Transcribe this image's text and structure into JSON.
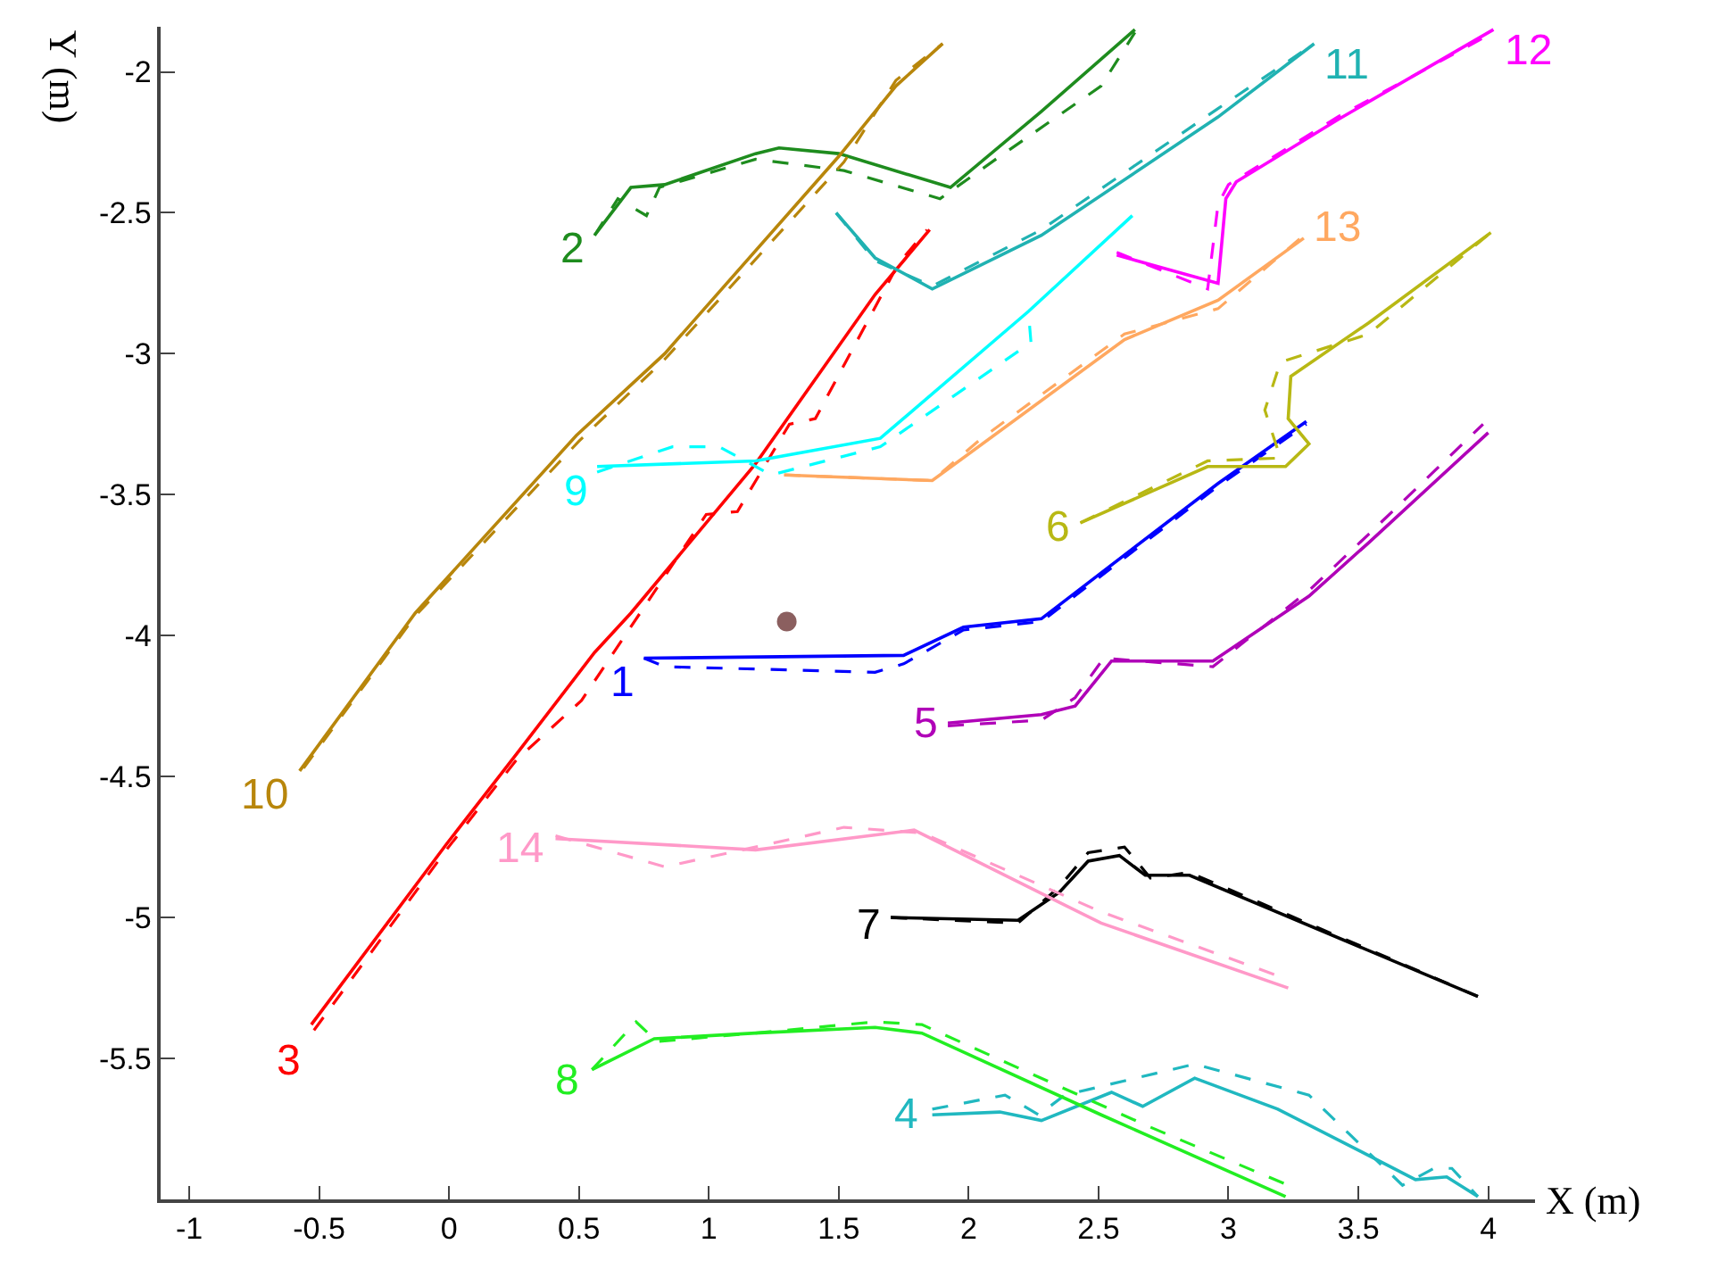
{
  "chart_data": {
    "type": "line",
    "xlabel": "X (m)",
    "ylabel": "Y (m)",
    "xlim": [
      -1.11,
      4.18
    ],
    "ylim": [
      -6.0,
      -1.84
    ],
    "xticks": [
      -1,
      -0.5,
      0,
      0.5,
      1,
      1.5,
      2,
      2.5,
      3,
      3.5,
      4
    ],
    "yticks": [
      -2,
      -2.5,
      -3,
      -3.5,
      -4,
      -4.5,
      -5,
      -5.5
    ],
    "grid": false,
    "legend": false,
    "marker": "none",
    "series": [
      {
        "name": "1",
        "color": "#0000ff",
        "line_style": "solid",
        "x": [
          0.75,
          1.75,
          1.98,
          2.28,
          2.96,
          3.3
        ],
        "values": [
          -4.08,
          -4.07,
          -3.97,
          -3.94,
          -3.46,
          -3.24
        ]
      },
      {
        "color": "#0000ff",
        "line_style": "dashed",
        "x": [
          0.75,
          0.83,
          1.64,
          1.75,
          1.98,
          2.28,
          2.96,
          3.3
        ],
        "values": [
          -4.08,
          -4.11,
          -4.13,
          -4.1,
          -3.98,
          -3.95,
          -3.47,
          -3.25
        ]
      },
      {
        "name": "2",
        "color": "#1e8c1e",
        "line_style": "solid",
        "x": [
          0.56,
          0.7,
          0.83,
          1.18,
          1.27,
          1.5,
          1.93,
          2.28,
          2.64
        ],
        "values": [
          -2.58,
          -2.41,
          -2.4,
          -2.29,
          -2.27,
          -2.29,
          -2.41,
          -2.14,
          -1.85
        ]
      },
      {
        "color": "#1e8c1e",
        "line_style": "dashed",
        "x": [
          0.56,
          0.65,
          0.76,
          0.81,
          1.18,
          1.52,
          1.89,
          2.12,
          2.51,
          2.64
        ],
        "values": [
          -2.58,
          -2.45,
          -2.51,
          -2.41,
          -2.31,
          -2.35,
          -2.45,
          -2.3,
          -2.05,
          -1.86
        ]
      },
      {
        "name": "3",
        "color": "#ff0000",
        "line_style": "solid",
        "x": [
          -0.53,
          -0.01,
          0.26,
          0.56,
          0.7,
          1.18,
          1.64,
          1.85
        ],
        "values": [
          -5.38,
          -4.74,
          -4.42,
          -4.06,
          -3.92,
          -3.39,
          -2.79,
          -2.56
        ]
      },
      {
        "color": "#ff0000",
        "line_style": "dashed",
        "x": [
          -0.52,
          -0.01,
          0.26,
          0.51,
          0.99,
          1.11,
          1.31,
          1.41,
          1.73,
          1.84
        ],
        "values": [
          -5.4,
          -4.76,
          -4.44,
          -4.23,
          -3.57,
          -3.56,
          -3.25,
          -3.23,
          -2.68,
          -2.56
        ]
      },
      {
        "name": "4",
        "color": "#20b8c0",
        "line_style": "solid",
        "x": [
          1.86,
          2.12,
          2.28,
          2.55,
          2.67,
          2.87,
          3.19,
          3.51,
          3.72,
          3.84,
          3.96
        ],
        "values": [
          -5.7,
          -5.69,
          -5.72,
          -5.62,
          -5.67,
          -5.57,
          -5.68,
          -5.83,
          -5.93,
          -5.92,
          -5.99
        ]
      },
      {
        "color": "#20b8c0",
        "line_style": "dashed",
        "x": [
          1.86,
          2.14,
          2.27,
          2.37,
          2.87,
          3.31,
          3.67,
          3.79,
          3.86,
          3.96
        ],
        "values": [
          -5.68,
          -5.63,
          -5.7,
          -5.63,
          -5.52,
          -5.63,
          -5.95,
          -5.89,
          -5.89,
          -5.99
        ]
      },
      {
        "name": "5",
        "color": "#b000b8",
        "line_style": "solid",
        "x": [
          1.92,
          2.28,
          2.41,
          2.55,
          2.94,
          3.31,
          3.54,
          4.0
        ],
        "values": [
          -4.31,
          -4.28,
          -4.25,
          -4.09,
          -4.09,
          -3.86,
          -3.67,
          -3.28
        ]
      },
      {
        "color": "#b000b8",
        "line_style": "dashed",
        "x": [
          1.92,
          2.28,
          2.41,
          2.52,
          2.94,
          3.31,
          3.54,
          3.98
        ],
        "values": [
          -4.32,
          -4.3,
          -4.22,
          -4.08,
          -4.11,
          -3.84,
          -3.64,
          -3.25
        ]
      },
      {
        "name": "6",
        "color": "#b8b814",
        "line_style": "solid",
        "x": [
          2.43,
          2.92,
          3.22,
          3.31,
          3.23,
          3.24,
          3.54,
          4.01
        ],
        "values": [
          -3.6,
          -3.4,
          -3.4,
          -3.32,
          -3.23,
          -3.08,
          -2.89,
          -2.57
        ]
      },
      {
        "color": "#b8b814",
        "line_style": "dashed",
        "x": [
          2.43,
          2.92,
          3.2,
          3.14,
          3.2,
          3.54,
          4.01
        ],
        "values": [
          -3.6,
          -3.38,
          -3.37,
          -3.2,
          -3.03,
          -2.93,
          -2.57
        ]
      },
      {
        "name": "7",
        "color": "#000000",
        "line_style": "solid",
        "x": [
          1.7,
          2.19,
          2.35,
          2.46,
          2.58,
          2.68,
          2.85,
          3.96
        ],
        "values": [
          -5.0,
          -5.01,
          -4.91,
          -4.8,
          -4.78,
          -4.85,
          -4.85,
          -5.28
        ]
      },
      {
        "color": "#000000",
        "line_style": "dashed",
        "x": [
          1.7,
          2.19,
          2.35,
          2.46,
          2.6,
          2.7,
          2.85,
          3.96
        ],
        "values": [
          -5.0,
          -5.02,
          -4.89,
          -4.77,
          -4.75,
          -4.86,
          -4.84,
          -5.28
        ]
      },
      {
        "name": "8",
        "color": "#22ee22",
        "line_style": "solid",
        "x": [
          0.55,
          0.79,
          1.18,
          1.64,
          1.82,
          2.51,
          3.22
        ],
        "values": [
          -5.54,
          -5.43,
          -5.41,
          -5.39,
          -5.41,
          -5.7,
          -5.99
        ]
      },
      {
        "color": "#22ee22",
        "line_style": "dashed",
        "x": [
          0.55,
          0.72,
          0.8,
          1.18,
          1.64,
          1.82,
          2.69,
          3.23
        ],
        "values": [
          -5.54,
          -5.37,
          -5.44,
          -5.41,
          -5.37,
          -5.38,
          -5.74,
          -5.95
        ]
      },
      {
        "name": "9",
        "color": "#00ffff",
        "line_style": "solid",
        "x": [
          0.57,
          1.18,
          1.66,
          2.23,
          2.63
        ],
        "values": [
          -3.4,
          -3.38,
          -3.3,
          -2.85,
          -2.51
        ]
      },
      {
        "color": "#00ffff",
        "line_style": "dashed",
        "x": [
          0.57,
          0.86,
          1.04,
          1.24,
          1.66,
          2.24,
          2.23
        ],
        "values": [
          -3.42,
          -3.33,
          -3.33,
          -3.43,
          -3.33,
          -2.96,
          -2.85
        ]
      },
      {
        "name": "10",
        "color": "#b8860b",
        "line_style": "solid",
        "x": [
          -0.575,
          -0.13,
          0.49,
          0.83,
          1.5,
          1.72,
          1.9
        ],
        "values": [
          -4.48,
          -3.92,
          -3.29,
          -3.0,
          -2.3,
          -2.05,
          -1.9
        ]
      },
      {
        "color": "#b8860b",
        "line_style": "dashed",
        "x": [
          -0.56,
          -0.13,
          0.5,
          0.83,
          1.52,
          1.72,
          1.9
        ],
        "values": [
          -4.47,
          -3.93,
          -3.31,
          -3.02,
          -2.32,
          -2.03,
          -1.9
        ]
      },
      {
        "name": "11",
        "color": "#20b2b2",
        "line_style": "solid",
        "x": [
          1.49,
          1.64,
          1.86,
          2.28,
          2.96,
          3.33
        ],
        "values": [
          -2.5,
          -2.66,
          -2.77,
          -2.58,
          -2.16,
          -1.9
        ]
      },
      {
        "color": "#20b2b2",
        "line_style": "dashed",
        "x": [
          1.49,
          1.64,
          1.86,
          2.28,
          2.96,
          3.33
        ],
        "values": [
          -2.5,
          -2.67,
          -2.76,
          -2.56,
          -2.13,
          -1.9
        ]
      },
      {
        "name": "12",
        "color": "#ff00ff",
        "line_style": "solid",
        "x": [
          2.57,
          2.96,
          2.99,
          3.03,
          3.42,
          4.02
        ],
        "values": [
          -2.65,
          -2.75,
          -2.45,
          -2.39,
          -2.17,
          -1.85
        ]
      },
      {
        "color": "#ff00ff",
        "line_style": "dashed",
        "x": [
          2.57,
          2.92,
          2.96,
          3.0,
          3.42,
          4.02
        ],
        "values": [
          -2.64,
          -2.77,
          -2.47,
          -2.4,
          -2.16,
          -1.86
        ]
      },
      {
        "name": "13",
        "color": "#ffa860",
        "line_style": "solid",
        "x": [
          1.29,
          1.86,
          2.6,
          2.96,
          3.29
        ],
        "values": [
          -3.43,
          -3.45,
          -2.95,
          -2.81,
          -2.59
        ]
      },
      {
        "color": "#ffa860",
        "line_style": "dashed",
        "x": [
          1.29,
          1.86,
          2.05,
          2.6,
          2.96,
          3.29
        ],
        "values": [
          -3.43,
          -3.45,
          -3.3,
          -2.93,
          -2.84,
          -2.58
        ]
      },
      {
        "name": "14",
        "color": "#ff99c8",
        "line_style": "solid",
        "x": [
          0.41,
          1.18,
          1.79,
          2.51,
          3.23
        ],
        "values": [
          -4.72,
          -4.76,
          -4.69,
          -5.02,
          -5.25
        ]
      },
      {
        "color": "#ff99c8",
        "line_style": "dashed",
        "x": [
          0.41,
          0.83,
          1.18,
          1.52,
          1.82,
          2.51,
          3.23
        ],
        "values": [
          -4.71,
          -4.82,
          -4.75,
          -4.68,
          -4.7,
          -4.98,
          -5.22
        ]
      },
      {
        "type": "scatter",
        "color": "#8b5f5f",
        "marker": "circle",
        "x": [
          1.3
        ],
        "values": [
          -3.95
        ]
      }
    ]
  }
}
